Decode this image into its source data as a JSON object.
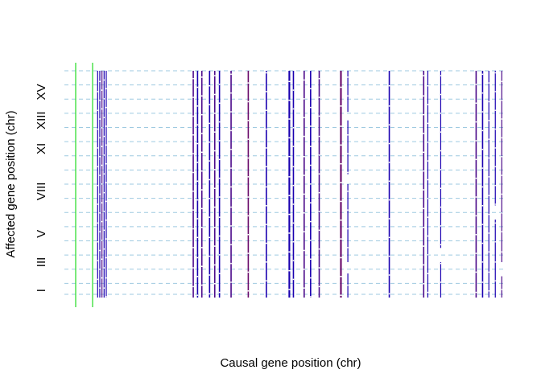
{
  "chart_data": {
    "type": "heatmap",
    "xlabel": "Causal gene position (chr)",
    "ylabel": "Affected gene position (chr)",
    "y_tick_labels": [
      "I",
      "III",
      "V",
      "VIII",
      "XI",
      "XIII",
      "XV"
    ],
    "y_tick_positions": [
      1,
      3,
      5,
      8,
      11,
      13,
      15
    ],
    "ylim": [
      0.5,
      16.5
    ],
    "chromosome_boundaries": [
      1.5,
      2.5,
      3.5,
      4.5,
      5.5,
      6.5,
      7.5,
      8.5,
      9.5,
      10.5,
      11.5,
      12.5,
      13.5,
      14.5,
      15.5,
      16.5
    ],
    "grid": true,
    "colors": {
      "high": "#1a00b0",
      "mid": "#4b0a8a",
      "low": "#6a0a6a",
      "gridline": "#9ecae1",
      "marker": "#33dd33"
    },
    "highlighted_columns": 2,
    "columns": [
      {
        "x": 0.05,
        "w": 0.002,
        "c": "high",
        "s": [
          [
            0.5,
            16.5
          ]
        ]
      },
      {
        "x": 0.055,
        "w": 0.002,
        "c": "high",
        "s": [
          [
            0.5,
            16.5
          ]
        ]
      },
      {
        "x": 0.06,
        "w": 0.002,
        "c": "mid",
        "s": [
          [
            0.5,
            16.5
          ]
        ]
      },
      {
        "x": 0.065,
        "w": 0.002,
        "c": "high",
        "s": [
          [
            0.5,
            16.5
          ]
        ]
      },
      {
        "x": 0.07,
        "w": 0.002,
        "c": "high",
        "s": [
          [
            0.5,
            16.5
          ]
        ]
      },
      {
        "x": 0.272,
        "w": 0.003,
        "c": "mid",
        "s": [
          [
            0.5,
            16.5
          ]
        ]
      },
      {
        "x": 0.282,
        "w": 0.003,
        "c": "high",
        "s": [
          [
            0.5,
            16.5
          ]
        ]
      },
      {
        "x": 0.292,
        "w": 0.003,
        "c": "mid",
        "s": [
          [
            0.5,
            16.5
          ]
        ]
      },
      {
        "x": 0.31,
        "w": 0.003,
        "c": "high",
        "s": [
          [
            0.5,
            16.5
          ]
        ]
      },
      {
        "x": 0.322,
        "w": 0.003,
        "c": "mid",
        "s": [
          [
            0.5,
            16.5
          ]
        ]
      },
      {
        "x": 0.333,
        "w": 0.003,
        "c": "high",
        "s": [
          [
            0.5,
            16.5
          ]
        ]
      },
      {
        "x": 0.36,
        "w": 0.003,
        "c": "mid",
        "s": [
          [
            0.5,
            16.5
          ]
        ]
      },
      {
        "x": 0.4,
        "w": 0.003,
        "c": "low",
        "s": [
          [
            0.5,
            16.5
          ]
        ]
      },
      {
        "x": 0.442,
        "w": 0.003,
        "c": "high",
        "s": [
          [
            0.5,
            16.5
          ]
        ]
      },
      {
        "x": 0.495,
        "w": 0.004,
        "c": "high",
        "s": [
          [
            0.5,
            16.5
          ]
        ]
      },
      {
        "x": 0.505,
        "w": 0.003,
        "c": "high",
        "s": [
          [
            0.5,
            16.5
          ]
        ]
      },
      {
        "x": 0.53,
        "w": 0.003,
        "c": "mid",
        "s": [
          [
            0.5,
            16.5
          ]
        ]
      },
      {
        "x": 0.545,
        "w": 0.003,
        "c": "high",
        "s": [
          [
            0.5,
            16.5
          ]
        ]
      },
      {
        "x": 0.565,
        "w": 0.003,
        "c": "mid",
        "s": [
          [
            0.5,
            16.5
          ]
        ]
      },
      {
        "x": 0.615,
        "w": 0.004,
        "c": "low",
        "s": [
          [
            0.5,
            16.5
          ]
        ]
      },
      {
        "x": 0.632,
        "w": 0.002,
        "c": "high",
        "s": [
          [
            0.5,
            2.2
          ],
          [
            3,
            8.5
          ],
          [
            9.2,
            13
          ],
          [
            13.6,
            16.5
          ]
        ]
      },
      {
        "x": 0.728,
        "w": 0.003,
        "c": "high",
        "s": [
          [
            0.5,
            16.5
          ]
        ]
      },
      {
        "x": 0.808,
        "w": 0.003,
        "c": "mid",
        "s": [
          [
            0.5,
            16.5
          ]
        ]
      },
      {
        "x": 0.818,
        "w": 0.002,
        "c": "high",
        "s": [
          [
            0.5,
            16.5
          ]
        ]
      },
      {
        "x": 0.848,
        "w": 0.002,
        "c": "high",
        "s": [
          [
            0.5,
            3
          ],
          [
            4,
            16.5
          ]
        ]
      },
      {
        "x": 0.93,
        "w": 0.003,
        "c": "mid",
        "s": [
          [
            0.5,
            16.5
          ]
        ]
      },
      {
        "x": 0.945,
        "w": 0.003,
        "c": "high",
        "s": [
          [
            0.5,
            16.5
          ]
        ]
      },
      {
        "x": 0.96,
        "w": 0.002,
        "c": "high",
        "s": [
          [
            0.5,
            16.5
          ]
        ]
      },
      {
        "x": 0.975,
        "w": 0.002,
        "c": "high",
        "s": [
          [
            0.5,
            6
          ],
          [
            7,
            16.5
          ]
        ]
      },
      {
        "x": 0.99,
        "w": 0.002,
        "c": "mid",
        "s": [
          [
            0.5,
            2
          ],
          [
            3,
            16.5
          ]
        ]
      }
    ]
  }
}
